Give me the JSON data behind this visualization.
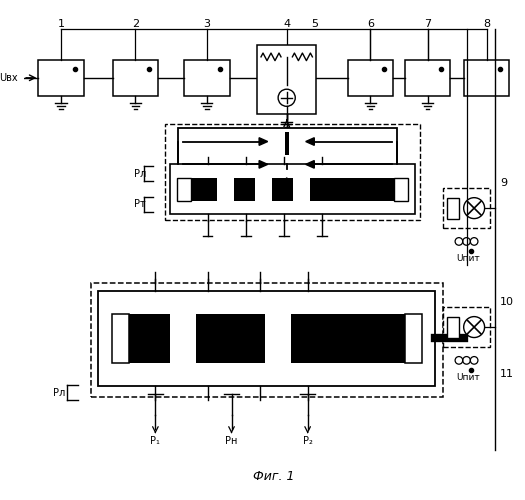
{
  "title": "Фиг. 1",
  "background": "#ffffff",
  "label_1": "1",
  "label_2": "2",
  "label_3": "3",
  "label_4": "4",
  "label_5": "5",
  "label_6": "6",
  "label_7": "7",
  "label_8": "8",
  "label_9": "9",
  "label_10": "10",
  "label_11": "11",
  "uvx": "Uвх",
  "upit": "Uпит",
  "pl": "Pл",
  "pt": "Pт",
  "p1": "P₁",
  "pn": "Pн",
  "p2": "P₂"
}
